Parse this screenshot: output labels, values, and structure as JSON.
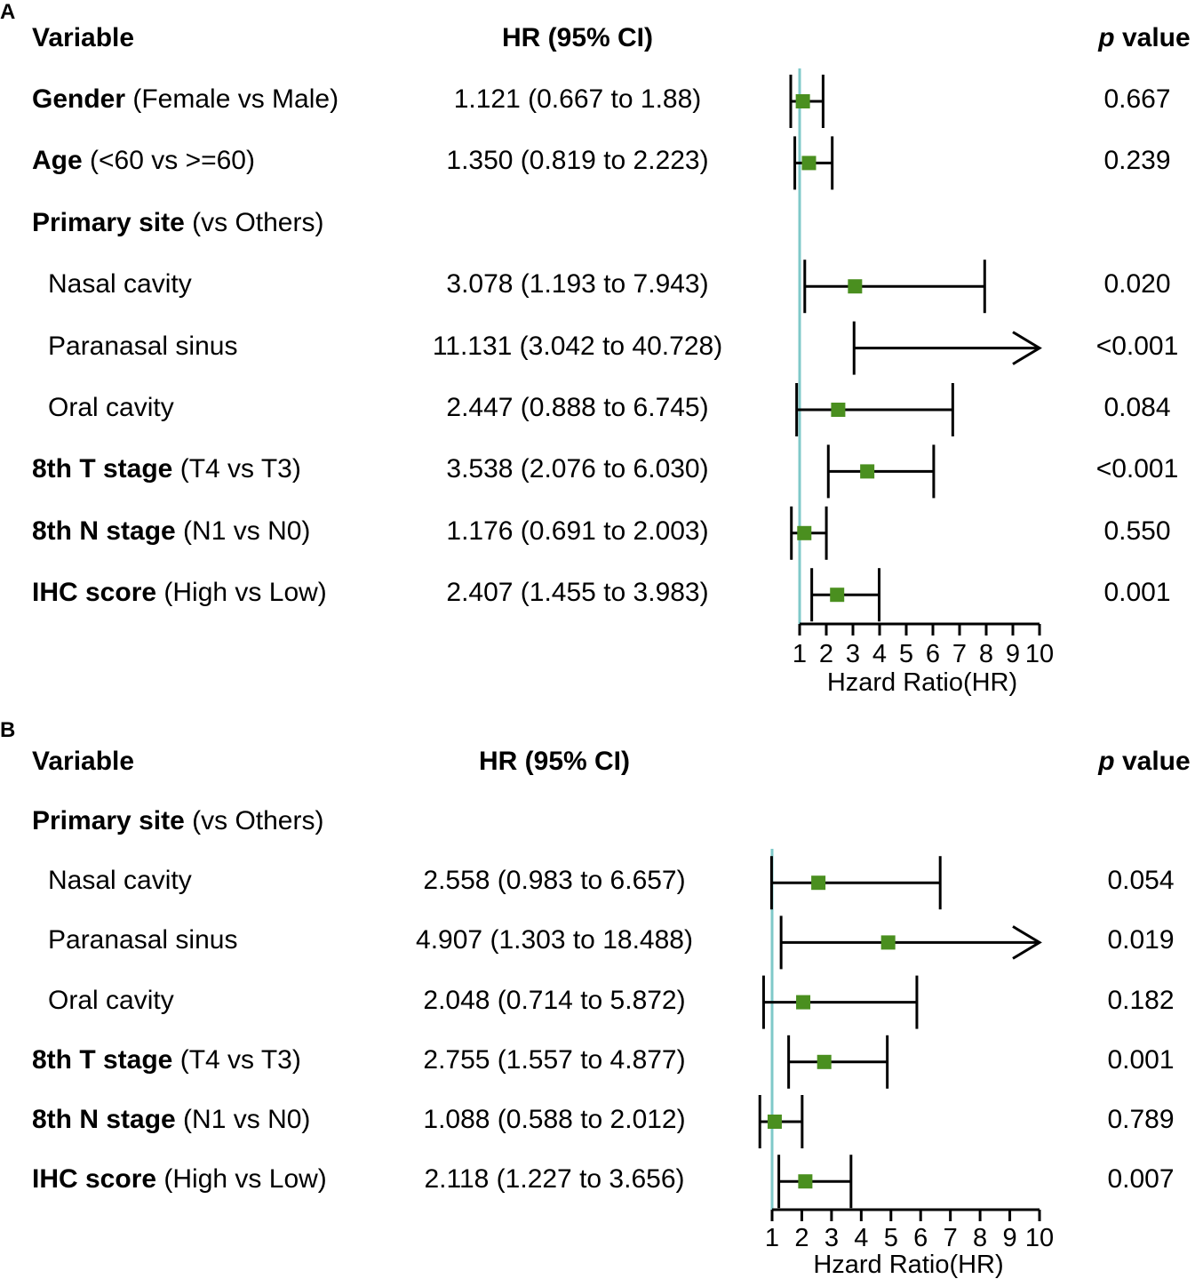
{
  "colors": {
    "refline": "#7fc9c9",
    "marker": "#4a8f1f",
    "ink": "#000000"
  },
  "panels": [
    {
      "label": "A",
      "headers": {
        "variable": "Variable",
        "hr": "HR (95% CI)",
        "p_italic": "p",
        "p_rest": " value"
      },
      "rows": [
        {
          "bold": "Gender",
          "rest": " (Female vs Male)",
          "indent": false,
          "hr_text": "1.121 (0.667 to 1.88)",
          "p": "0.667",
          "hr": 1.121,
          "lo": 0.667,
          "hi": 1.88,
          "marker": true,
          "arrow": false
        },
        {
          "bold": "Age",
          "rest": " (<60 vs >=60)",
          "indent": false,
          "hr_text": "1.350 (0.819 to 2.223)",
          "p": "0.239",
          "hr": 1.35,
          "lo": 0.819,
          "hi": 2.223,
          "marker": true,
          "arrow": false
        },
        {
          "bold": "Primary site",
          "rest": " (vs Others)",
          "indent": false,
          "hr_text": "",
          "p": ""
        },
        {
          "bold": "",
          "rest": "Nasal cavity",
          "indent": true,
          "hr_text": "3.078 (1.193 to 7.943)",
          "p": "0.020",
          "hr": 3.078,
          "lo": 1.193,
          "hi": 7.943,
          "marker": true,
          "arrow": false
        },
        {
          "bold": "",
          "rest": "Paranasal sinus",
          "indent": true,
          "hr_text": "11.131 (3.042 to 40.728)",
          "p": "<0.001",
          "hr": 11.131,
          "lo": 3.042,
          "hi": 40.728,
          "marker": false,
          "arrow": true
        },
        {
          "bold": "",
          "rest": "Oral cavity",
          "indent": true,
          "hr_text": "2.447 (0.888 to 6.745)",
          "p": "0.084",
          "hr": 2.447,
          "lo": 0.888,
          "hi": 6.745,
          "marker": true,
          "arrow": false
        },
        {
          "bold": "8th T stage",
          "rest": " (T4 vs T3)",
          "indent": false,
          "hr_text": "3.538 (2.076 to 6.030)",
          "p": "<0.001",
          "hr": 3.538,
          "lo": 2.076,
          "hi": 6.03,
          "marker": true,
          "arrow": false
        },
        {
          "bold": "8th N stage",
          "rest": " (N1 vs N0)",
          "indent": false,
          "hr_text": "1.176 (0.691 to 2.003)",
          "p": "0.550",
          "hr": 1.176,
          "lo": 0.691,
          "hi": 2.003,
          "marker": true,
          "arrow": false
        },
        {
          "bold": "IHC score",
          "rest": " (High vs Low)",
          "indent": false,
          "hr_text": "2.407 (1.455 to 3.983)",
          "p": "0.001",
          "hr": 2.407,
          "lo": 1.455,
          "hi": 3.983,
          "marker": true,
          "arrow": false
        }
      ],
      "axis": {
        "ticks": [
          "1",
          "2",
          "3",
          "4",
          "5",
          "6",
          "7",
          "8",
          "9",
          "10"
        ],
        "xlim": [
          1,
          10
        ],
        "ref": 1,
        "xlabel": "Hzard Ratio(HR)"
      }
    },
    {
      "label": "B",
      "headers": {
        "variable": "Variable",
        "hr": "HR (95% CI)",
        "p_italic": "p",
        "p_rest": " value"
      },
      "rows": [
        {
          "bold": "Primary site",
          "rest": " (vs Others)",
          "indent": false,
          "hr_text": "",
          "p": ""
        },
        {
          "bold": "",
          "rest": "Nasal cavity",
          "indent": true,
          "hr_text": "2.558 (0.983 to 6.657)",
          "p": "0.054",
          "hr": 2.558,
          "lo": 0.983,
          "hi": 6.657,
          "marker": true,
          "arrow": false
        },
        {
          "bold": "",
          "rest": "Paranasal sinus",
          "indent": true,
          "hr_text": "4.907 (1.303 to 18.488)",
          "p": "0.019",
          "hr": 4.907,
          "lo": 1.303,
          "hi": 18.488,
          "marker": true,
          "arrow": true
        },
        {
          "bold": "",
          "rest": "Oral cavity",
          "indent": true,
          "hr_text": "2.048 (0.714 to 5.872)",
          "p": "0.182",
          "hr": 2.048,
          "lo": 0.714,
          "hi": 5.872,
          "marker": true,
          "arrow": false
        },
        {
          "bold": "8th T stage",
          "rest": " (T4 vs T3)",
          "indent": false,
          "hr_text": "2.755 (1.557 to 4.877)",
          "p": "0.001",
          "hr": 2.755,
          "lo": 1.557,
          "hi": 4.877,
          "marker": true,
          "arrow": false
        },
        {
          "bold": "8th N stage",
          "rest": " (N1 vs N0)",
          "indent": false,
          "hr_text": "1.088 (0.588 to 2.012)",
          "p": "0.789",
          "hr": 1.088,
          "lo": 0.588,
          "hi": 2.012,
          "marker": true,
          "arrow": false
        },
        {
          "bold": "IHC score",
          "rest": " (High vs Low)",
          "indent": false,
          "hr_text": "2.118 (1.227 to 3.656)",
          "p": "0.007",
          "hr": 2.118,
          "lo": 1.227,
          "hi": 3.656,
          "marker": true,
          "arrow": false
        }
      ],
      "axis": {
        "ticks": [
          "1",
          "2",
          "3",
          "4",
          "5",
          "6",
          "7",
          "8",
          "9",
          "10"
        ],
        "xlim": [
          1,
          10
        ],
        "ref": 1,
        "xlabel": "Hzard Ratio(HR)"
      }
    }
  ],
  "chart_data": [
    {
      "type": "forest",
      "panel": "A",
      "xlabel": "Hzard Ratio(HR)",
      "xlim": [
        1,
        10
      ],
      "reference_line": 1,
      "rows": [
        {
          "label": "Gender (Female vs Male)",
          "hr": 1.121,
          "ci": [
            0.667,
            1.88
          ],
          "p": "0.667"
        },
        {
          "label": "Age (<60 vs >=60)",
          "hr": 1.35,
          "ci": [
            0.819,
            2.223
          ],
          "p": "0.239"
        },
        {
          "label": "Primary site: Nasal cavity",
          "hr": 3.078,
          "ci": [
            1.193,
            7.943
          ],
          "p": "0.020"
        },
        {
          "label": "Primary site: Paranasal sinus",
          "hr": 11.131,
          "ci": [
            3.042,
            40.728
          ],
          "p": "<0.001"
        },
        {
          "label": "Primary site: Oral cavity",
          "hr": 2.447,
          "ci": [
            0.888,
            6.745
          ],
          "p": "0.084"
        },
        {
          "label": "8th T stage (T4 vs T3)",
          "hr": 3.538,
          "ci": [
            2.076,
            6.03
          ],
          "p": "<0.001"
        },
        {
          "label": "8th N stage (N1 vs N0)",
          "hr": 1.176,
          "ci": [
            0.691,
            2.003
          ],
          "p": "0.550"
        },
        {
          "label": "IHC score (High vs Low)",
          "hr": 2.407,
          "ci": [
            1.455,
            3.983
          ],
          "p": "0.001"
        }
      ]
    },
    {
      "type": "forest",
      "panel": "B",
      "xlabel": "Hzard Ratio(HR)",
      "xlim": [
        1,
        10
      ],
      "reference_line": 1,
      "rows": [
        {
          "label": "Primary site: Nasal cavity",
          "hr": 2.558,
          "ci": [
            0.983,
            6.657
          ],
          "p": "0.054"
        },
        {
          "label": "Primary site: Paranasal sinus",
          "hr": 4.907,
          "ci": [
            1.303,
            18.488
          ],
          "p": "0.019"
        },
        {
          "label": "Primary site: Oral cavity",
          "hr": 2.048,
          "ci": [
            0.714,
            5.872
          ],
          "p": "0.182"
        },
        {
          "label": "8th T stage (T4 vs T3)",
          "hr": 2.755,
          "ci": [
            1.557,
            4.877
          ],
          "p": "0.001"
        },
        {
          "label": "8th N stage (N1 vs N0)",
          "hr": 1.088,
          "ci": [
            0.588,
            2.012
          ],
          "p": "0.789"
        },
        {
          "label": "IHC score (High vs Low)",
          "hr": 2.118,
          "ci": [
            1.227,
            3.656
          ],
          "p": "0.007"
        }
      ]
    }
  ]
}
